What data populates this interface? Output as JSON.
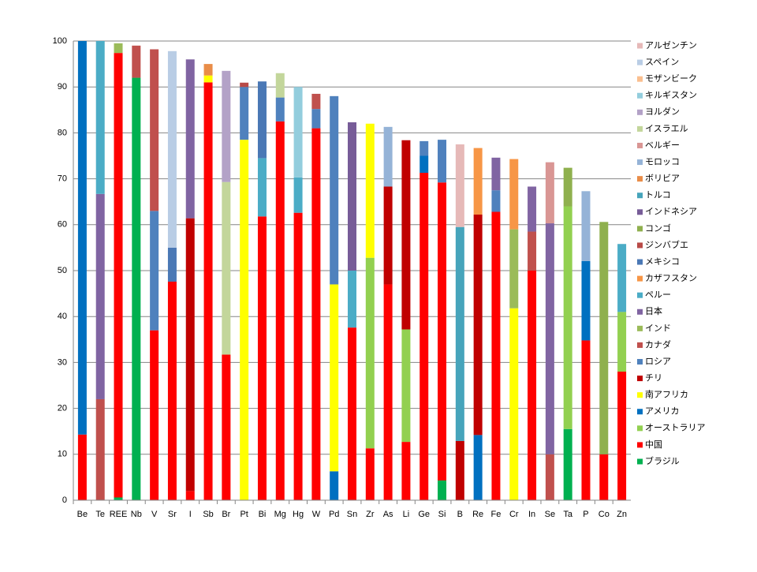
{
  "chart_data": {
    "type": "stacked-bar",
    "categories": [
      "Be",
      "Te",
      "REE",
      "Nb",
      "V",
      "Sr",
      "I",
      "Sb",
      "Br",
      "Pt",
      "Bi",
      "Mg",
      "Hg",
      "W",
      "Pd",
      "Sn",
      "Zr",
      "As",
      "Li",
      "Ge",
      "Si",
      "B",
      "Re",
      "Fe",
      "Cr",
      "In",
      "Se",
      "Ta",
      "P",
      "Co",
      "Zn"
    ],
    "ylim": [
      0,
      100
    ],
    "yticks": [
      0,
      10,
      20,
      30,
      40,
      50,
      60,
      70,
      80,
      90,
      100
    ],
    "grid": true,
    "series": [
      {
        "name": "ブラジル",
        "color": "#00b050",
        "values": [
          null,
          null,
          0.6,
          92,
          null,
          null,
          null,
          null,
          null,
          null,
          null,
          null,
          null,
          null,
          null,
          null,
          null,
          null,
          null,
          null,
          4.3,
          null,
          null,
          null,
          null,
          null,
          null,
          15.5,
          null,
          null,
          null
        ]
      },
      {
        "name": "中国",
        "color": "#ff0000",
        "values": [
          14.3,
          null,
          96.8,
          null,
          37,
          47.6,
          2,
          91,
          31.7,
          null,
          61.8,
          82.5,
          62.6,
          81,
          null,
          37.6,
          11.3,
          47,
          12.7,
          71.3,
          64.9,
          null,
          null,
          62.8,
          null,
          50,
          null,
          null,
          34.8,
          10,
          28
        ]
      },
      {
        "name": "オーストラリア",
        "color": "#92d050",
        "values": [
          null,
          null,
          null,
          null,
          null,
          null,
          null,
          null,
          null,
          null,
          null,
          null,
          null,
          null,
          null,
          null,
          41.5,
          null,
          24.5,
          null,
          null,
          null,
          null,
          null,
          null,
          null,
          null,
          48.5,
          null,
          null,
          13
        ]
      },
      {
        "name": "アメリカ",
        "color": "#0070c0",
        "values": [
          85.7,
          null,
          null,
          null,
          null,
          null,
          null,
          null,
          null,
          null,
          null,
          null,
          null,
          null,
          6.3,
          null,
          null,
          null,
          null,
          3.7,
          null,
          null,
          14.2,
          null,
          null,
          null,
          null,
          null,
          17.3,
          null,
          null
        ]
      },
      {
        "name": "南アフリカ",
        "color": "#ffff00",
        "values": [
          null,
          null,
          null,
          null,
          null,
          null,
          null,
          1.5,
          null,
          78.5,
          null,
          null,
          null,
          null,
          40.7,
          null,
          29.2,
          null,
          null,
          null,
          null,
          null,
          null,
          null,
          41.8,
          null,
          null,
          null,
          null,
          null,
          null
        ]
      },
      {
        "name": "チリ",
        "color": "#c00000",
        "values": [
          null,
          null,
          null,
          null,
          null,
          null,
          59.4,
          null,
          null,
          null,
          null,
          null,
          null,
          null,
          null,
          null,
          null,
          21.3,
          41.2,
          null,
          null,
          12.9,
          48,
          null,
          null,
          null,
          null,
          null,
          null,
          null,
          null
        ]
      },
      {
        "name": "ロシア",
        "color": "#4f81bd",
        "values": [
          null,
          null,
          null,
          null,
          26,
          null,
          null,
          null,
          null,
          11.5,
          null,
          5.2,
          null,
          4.2,
          41,
          null,
          null,
          null,
          null,
          3.2,
          9.3,
          null,
          null,
          4.7,
          null,
          null,
          null,
          null,
          null,
          null,
          null
        ]
      },
      {
        "name": "カナダ",
        "color": "#c0504d",
        "values": [
          null,
          22,
          null,
          7,
          35.2,
          null,
          null,
          null,
          null,
          null,
          null,
          null,
          null,
          3.3,
          null,
          null,
          null,
          null,
          null,
          null,
          null,
          null,
          null,
          null,
          null,
          8.5,
          10,
          null,
          null,
          null,
          null
        ]
      },
      {
        "name": "インド",
        "color": "#9bbb59",
        "values": [
          null,
          null,
          2.1,
          null,
          null,
          null,
          null,
          null,
          null,
          null,
          null,
          null,
          null,
          null,
          null,
          null,
          null,
          null,
          null,
          null,
          null,
          null,
          null,
          null,
          17.2,
          null,
          null,
          null,
          null,
          null,
          null
        ]
      },
      {
        "name": "日本",
        "color": "#8064a2",
        "values": [
          null,
          44.7,
          null,
          null,
          null,
          null,
          34.6,
          null,
          null,
          null,
          null,
          null,
          null,
          null,
          null,
          null,
          null,
          null,
          null,
          null,
          null,
          null,
          null,
          7.1,
          null,
          9.8,
          50.3,
          null,
          null,
          null,
          null
        ]
      },
      {
        "name": "ペルー",
        "color": "#4bacc6",
        "values": [
          null,
          33.3,
          null,
          null,
          null,
          null,
          null,
          null,
          null,
          null,
          12.7,
          null,
          7.7,
          null,
          null,
          12.4,
          null,
          null,
          null,
          null,
          null,
          null,
          null,
          null,
          null,
          null,
          null,
          null,
          null,
          null,
          14.8
        ]
      },
      {
        "name": "カザフスタン",
        "color": "#f79646",
        "values": [
          null,
          null,
          null,
          null,
          null,
          null,
          null,
          null,
          null,
          null,
          null,
          null,
          null,
          null,
          null,
          null,
          null,
          null,
          null,
          null,
          null,
          null,
          14.5,
          null,
          15.3,
          null,
          null,
          null,
          null,
          null,
          null
        ]
      },
      {
        "name": "メキシコ",
        "color": "#4a78b5",
        "values": [
          null,
          null,
          null,
          null,
          null,
          7.4,
          null,
          null,
          null,
          null,
          16.7,
          null,
          null,
          null,
          null,
          null,
          null,
          null,
          null,
          null,
          null,
          null,
          null,
          null,
          null,
          null,
          null,
          null,
          null,
          null,
          null
        ]
      },
      {
        "name": "ジンバブエ",
        "color": "#b84a47",
        "values": [
          null,
          null,
          null,
          null,
          null,
          null,
          null,
          null,
          null,
          0.933,
          null,
          null,
          null,
          null,
          null,
          null,
          null,
          null,
          null,
          null,
          null,
          null,
          null,
          null,
          null,
          null,
          null,
          null,
          null,
          null,
          null
        ]
      },
      {
        "name": "コンゴ",
        "color": "#8fb04e",
        "values": [
          null,
          null,
          null,
          null,
          null,
          null,
          null,
          null,
          null,
          null,
          null,
          null,
          null,
          null,
          null,
          null,
          null,
          null,
          null,
          null,
          null,
          null,
          null,
          null,
          null,
          null,
          null,
          8.4,
          null,
          50.6,
          null
        ]
      },
      {
        "name": "インドネシア",
        "color": "#775c98",
        "values": [
          null,
          null,
          null,
          null,
          null,
          null,
          null,
          null,
          null,
          null,
          null,
          null,
          null,
          null,
          null,
          32.3,
          null,
          null,
          null,
          null,
          null,
          null,
          null,
          null,
          null,
          null,
          null,
          null,
          null,
          null,
          null
        ]
      },
      {
        "name": "トルコ",
        "color": "#46a4bb",
        "values": [
          null,
          null,
          null,
          null,
          null,
          null,
          null,
          null,
          null,
          null,
          null,
          null,
          null,
          null,
          null,
          null,
          null,
          null,
          null,
          null,
          null,
          46.6,
          null,
          null,
          null,
          null,
          null,
          null,
          null,
          null,
          null
        ]
      },
      {
        "name": "ボリビア",
        "color": "#e98d48",
        "values": [
          null,
          null,
          null,
          null,
          null,
          null,
          null,
          2.5,
          null,
          null,
          null,
          null,
          null,
          null,
          null,
          null,
          null,
          null,
          null,
          null,
          null,
          null,
          null,
          null,
          null,
          null,
          null,
          null,
          null,
          null,
          null
        ]
      },
      {
        "name": "モロッコ",
        "color": "#95b3d7",
        "values": [
          null,
          null,
          null,
          null,
          null,
          null,
          null,
          null,
          null,
          null,
          null,
          null,
          null,
          null,
          null,
          null,
          null,
          13,
          null,
          null,
          null,
          null,
          null,
          null,
          null,
          null,
          null,
          null,
          15.2,
          null,
          null
        ]
      },
      {
        "name": "ベルギー",
        "color": "#d99694",
        "values": [
          null,
          null,
          null,
          null,
          null,
          null,
          null,
          null,
          null,
          null,
          null,
          null,
          null,
          null,
          null,
          null,
          null,
          null,
          null,
          null,
          null,
          null,
          null,
          null,
          null,
          null,
          13.3,
          null,
          null,
          null,
          null
        ]
      },
      {
        "name": "イスラエル",
        "color": "#c3d69b",
        "values": [
          null,
          null,
          null,
          null,
          null,
          null,
          null,
          null,
          37.6,
          null,
          null,
          5.3,
          null,
          null,
          null,
          null,
          null,
          null,
          null,
          null,
          null,
          null,
          null,
          null,
          null,
          null,
          null,
          null,
          null,
          null,
          null
        ]
      },
      {
        "name": "ヨルダン",
        "color": "#b3a2c7",
        "values": [
          null,
          null,
          null,
          null,
          null,
          null,
          null,
          null,
          24.2,
          null,
          null,
          null,
          null,
          null,
          null,
          null,
          null,
          null,
          null,
          null,
          null,
          null,
          null,
          null,
          null,
          null,
          null,
          null,
          null,
          null,
          null
        ]
      },
      {
        "name": "キルギスタン",
        "color": "#93cddd",
        "values": [
          null,
          null,
          null,
          null,
          null,
          null,
          null,
          null,
          null,
          null,
          null,
          null,
          19.7,
          null,
          null,
          null,
          null,
          null,
          null,
          null,
          null,
          null,
          null,
          null,
          null,
          null,
          null,
          null,
          null,
          null,
          null
        ]
      },
      {
        "name": "モザンビーク",
        "color": "#fabf8f",
        "values": [
          null,
          null,
          null,
          null,
          null,
          null,
          null,
          null,
          null,
          null,
          null,
          null,
          null,
          null,
          null,
          null,
          null,
          null,
          null,
          null,
          null,
          null,
          null,
          null,
          null,
          null,
          null,
          null,
          null,
          null,
          null
        ]
      },
      {
        "name": "スペイン",
        "color": "#b9cde5",
        "values": [
          null,
          null,
          null,
          null,
          null,
          42.8,
          null,
          null,
          null,
          null,
          null,
          null,
          null,
          null,
          null,
          null,
          null,
          null,
          null,
          null,
          null,
          null,
          null,
          null,
          null,
          null,
          null,
          null,
          null,
          null,
          null
        ]
      },
      {
        "name": "アルゼンチン",
        "color": "#e6b9b8",
        "values": [
          null,
          null,
          null,
          null,
          null,
          null,
          null,
          null,
          null,
          null,
          null,
          null,
          null,
          null,
          null,
          null,
          null,
          null,
          null,
          null,
          null,
          18,
          null,
          null,
          null,
          null,
          null,
          null,
          null,
          null,
          null
        ]
      }
    ]
  }
}
